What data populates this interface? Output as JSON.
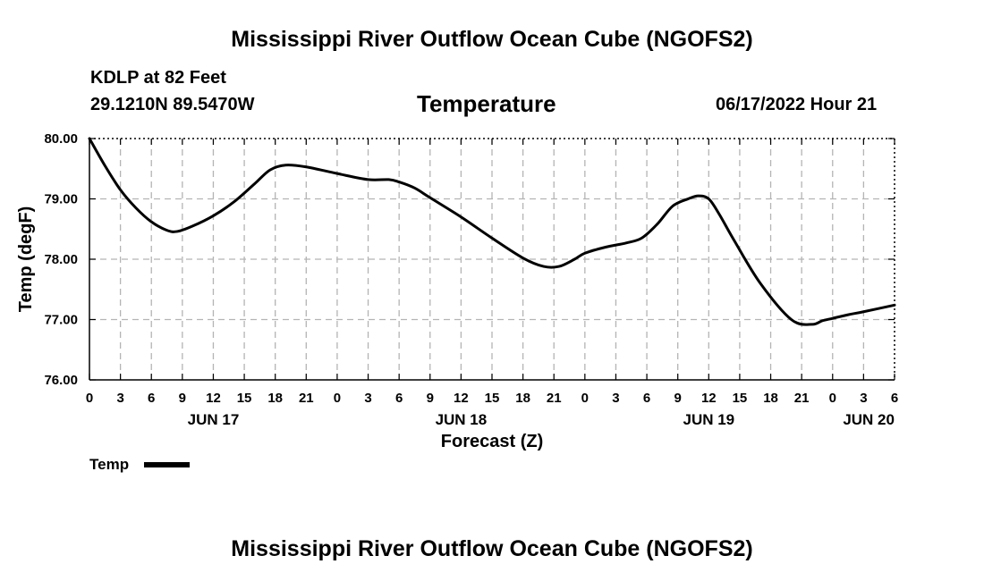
{
  "header": {
    "title": "Mississippi River Outflow Ocean Cube (NGOFS2)",
    "station": "KDLP at 82 Feet",
    "coords": "29.1210N  89.5470W",
    "variable": "Temperature",
    "datetime": "06/17/2022 Hour 21"
  },
  "footer": {
    "title": "Mississippi River Outflow Ocean Cube (NGOFS2)"
  },
  "chart_data": {
    "type": "line",
    "title": "Temperature",
    "xlabel": "Forecast (Z)",
    "ylabel": "Temp (degF)",
    "xlim": [
      0,
      78
    ],
    "ylim": [
      76,
      80
    ],
    "grid": true,
    "y_ticks": [
      "76.00",
      "77.00",
      "78.00",
      "79.00",
      "80.00"
    ],
    "x_ticks": [
      "0",
      "3",
      "6",
      "9",
      "12",
      "15",
      "18",
      "21",
      "0",
      "3",
      "6",
      "9",
      "12",
      "15",
      "18",
      "21",
      "0",
      "3",
      "6",
      "9",
      "12",
      "15",
      "18",
      "21",
      "0",
      "3",
      "6"
    ],
    "date_labels": [
      {
        "label": "JUN 17",
        "x": 12
      },
      {
        "label": "JUN 18",
        "x": 36
      },
      {
        "label": "JUN 19",
        "x": 60
      },
      {
        "label": "JUN 20",
        "x": 75.5
      }
    ],
    "legend": [
      {
        "name": "Temp",
        "position": "bottom-left"
      }
    ],
    "series": [
      {
        "name": "Temp",
        "x": [
          0,
          1.5,
          3,
          4.5,
          6,
          7.5,
          8.5,
          10,
          12,
          14,
          16,
          17.5,
          19,
          21,
          24,
          27,
          29,
          30,
          31.5,
          33,
          36,
          39,
          42,
          44,
          45.5,
          47,
          48,
          50,
          52,
          53.5,
          55,
          56.5,
          58,
          59,
          60,
          61,
          62.5,
          65,
          68,
          70,
          71,
          72,
          73.5,
          75,
          78
        ],
        "values": [
          80.0,
          79.55,
          79.15,
          78.85,
          78.62,
          78.48,
          78.46,
          78.55,
          78.72,
          78.95,
          79.25,
          79.48,
          79.56,
          79.53,
          79.42,
          79.32,
          79.32,
          79.28,
          79.18,
          79.02,
          78.7,
          78.35,
          78.02,
          77.88,
          77.88,
          78.0,
          78.1,
          78.2,
          78.27,
          78.35,
          78.58,
          78.88,
          79.0,
          79.05,
          79.0,
          78.75,
          78.3,
          77.6,
          77.0,
          76.92,
          76.98,
          77.02,
          77.08,
          77.13,
          77.24
        ]
      }
    ]
  }
}
